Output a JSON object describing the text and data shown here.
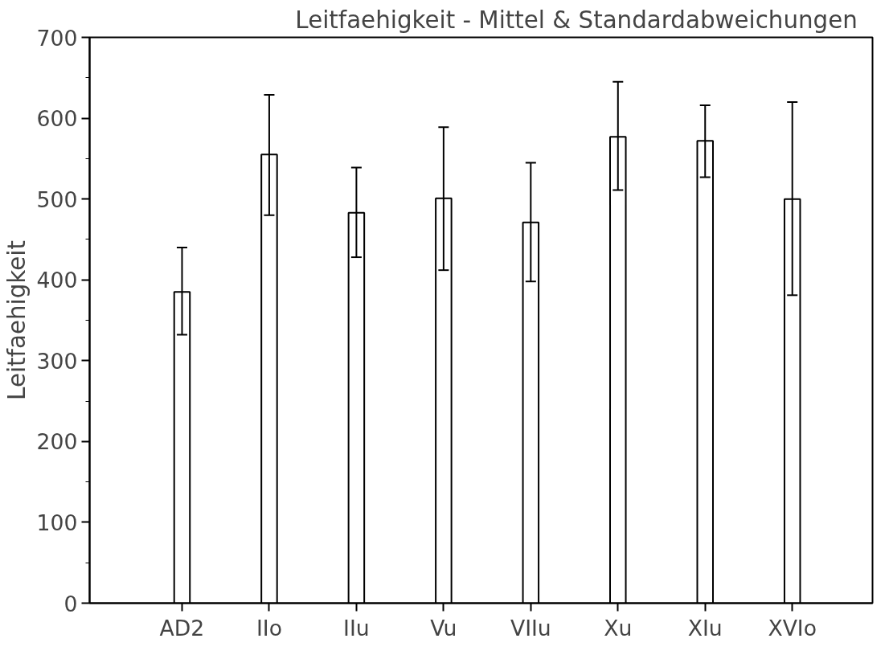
{
  "chart_data": {
    "type": "bar",
    "title": "Leitfaehigkeit  -  Mittel & Standardabweichungen",
    "ylabel": "Leitfaehigkeit",
    "categories": [
      "AD2",
      "IIo",
      "IIu",
      "Vu",
      "VIIu",
      "Xu",
      "XIu",
      "XVIo"
    ],
    "series": [
      {
        "color": "#ffffff",
        "values": [
          385,
          555,
          483,
          501,
          471,
          577,
          572,
          500
        ],
        "errors": [
          [
            332,
            440
          ],
          [
            480,
            629
          ],
          [
            428,
            539
          ],
          [
            412,
            589
          ],
          [
            398,
            545
          ],
          [
            511,
            645
          ],
          [
            527,
            616
          ],
          [
            381,
            620
          ]
        ]
      }
    ],
    "ylim": [
      0,
      700
    ],
    "yticks": [
      0,
      100,
      200,
      300,
      400,
      500,
      600,
      700
    ],
    "grid": false
  }
}
